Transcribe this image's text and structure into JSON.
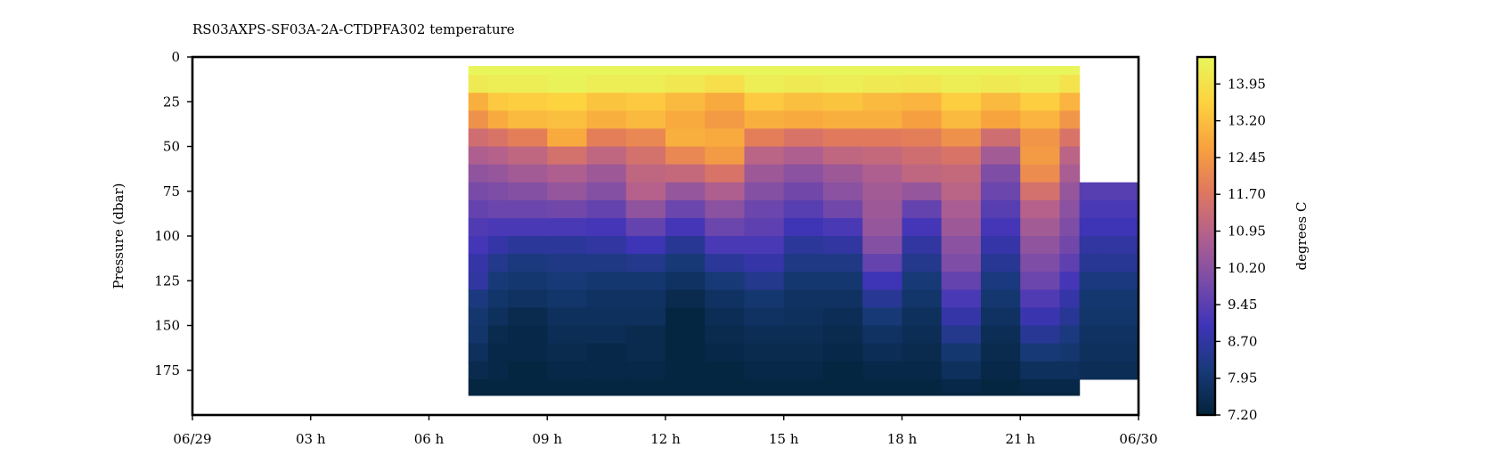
{
  "chart_data": {
    "type": "heatmap",
    "title": "RS03AXPS-SF03A-2A-CTDPFA302 temperature",
    "xlabel": "",
    "ylabel": "Pressure (dbar)",
    "colorbar_label": "degrees C",
    "x_ticks": [
      "06/29",
      "03 h",
      "06 h",
      "09 h",
      "12 h",
      "15 h",
      "18 h",
      "21 h",
      "06/30"
    ],
    "y_ticks": [
      "0",
      "25",
      "50",
      "75",
      "100",
      "125",
      "150",
      "175"
    ],
    "colorbar_ticks": [
      "13.95",
      "13.20",
      "12.45",
      "11.70",
      "10.95",
      "10.20",
      "9.45",
      "8.70",
      "7.95",
      "7.20"
    ],
    "xlim_hours": [
      0,
      24
    ],
    "ylim": [
      200,
      0
    ],
    "color_range": [
      7.2,
      14.5
    ],
    "grid": false,
    "colormap": [
      "#03233a",
      "#173a78",
      "#3f34b8",
      "#7a4ca8",
      "#b2608e",
      "#e0785e",
      "#f8a33e",
      "#fdd340",
      "#e8f65c"
    ],
    "profile_times_hours": [
      7.0,
      7.5,
      8.0,
      9.0,
      10.0,
      11.0,
      12.0,
      13.0,
      14.0,
      15.0,
      16.0,
      17.0,
      18.0,
      19.0,
      20.0,
      21.0,
      22.0,
      22.5,
      23.0,
      24.0
    ],
    "depths_dbar": [
      5,
      15,
      25,
      35,
      45,
      55,
      65,
      75,
      85,
      95,
      105,
      115,
      125,
      135,
      145,
      155,
      165,
      175,
      185,
      190
    ],
    "max_depth_dbar": [
      189,
      189,
      189,
      189,
      189,
      189,
      189,
      189,
      189,
      189,
      189,
      189,
      189,
      189,
      189,
      189,
      189,
      182,
      182,
      189
    ],
    "temperature_celsius": [
      [
        14.5,
        14.5,
        14.5,
        14.5,
        14.5,
        14.5,
        14.5,
        14.5,
        14.5,
        14.5,
        14.5,
        14.5,
        14.5,
        14.5,
        14.5,
        14.5,
        14.5,
        null,
        null,
        null
      ],
      [
        14.2,
        14.3,
        14.3,
        14.4,
        14.3,
        14.3,
        14.1,
        13.9,
        14.3,
        14.2,
        14.3,
        14.2,
        14.1,
        14.3,
        14.2,
        14.3,
        14.0,
        null,
        null,
        null
      ],
      [
        12.9,
        13.4,
        13.5,
        13.6,
        13.3,
        13.4,
        13.1,
        12.8,
        13.4,
        13.2,
        13.3,
        13.1,
        13.0,
        13.5,
        13.1,
        13.5,
        13.0,
        null,
        null,
        null
      ],
      [
        12.3,
        12.8,
        13.1,
        13.2,
        12.9,
        13.1,
        12.8,
        12.5,
        12.9,
        12.8,
        12.9,
        12.9,
        12.6,
        13.1,
        12.7,
        13.0,
        12.4,
        null,
        null,
        null
      ],
      [
        11.4,
        11.6,
        11.9,
        12.8,
        11.9,
        12.1,
        12.9,
        12.8,
        11.9,
        11.6,
        11.8,
        11.8,
        11.9,
        12.3,
        11.4,
        12.4,
        11.6,
        null,
        null,
        null
      ],
      [
        10.8,
        10.9,
        11.1,
        11.5,
        11.1,
        11.5,
        12.1,
        12.5,
        11.0,
        10.8,
        11.1,
        11.2,
        11.4,
        11.6,
        10.6,
        12.5,
        11.0,
        null,
        null,
        null
      ],
      [
        10.3,
        10.4,
        10.6,
        10.8,
        10.5,
        11.1,
        11.2,
        11.6,
        10.5,
        10.2,
        10.5,
        10.8,
        11.1,
        11.2,
        10.0,
        12.2,
        10.7,
        null,
        null,
        null
      ],
      [
        9.9,
        10.0,
        10.1,
        10.4,
        10.1,
        10.9,
        10.4,
        10.8,
        10.1,
        9.8,
        10.2,
        10.6,
        10.4,
        11.0,
        9.7,
        11.5,
        10.4,
        9.4,
        9.4,
        null
      ],
      [
        9.6,
        9.7,
        9.7,
        9.8,
        9.6,
        10.3,
        9.7,
        10.2,
        9.7,
        9.4,
        9.8,
        10.5,
        9.6,
        10.7,
        9.4,
        10.9,
        10.2,
        9.2,
        9.2,
        null
      ],
      [
        9.3,
        9.2,
        9.2,
        9.2,
        9.1,
        9.6,
        9.1,
        9.7,
        9.5,
        9.0,
        9.2,
        10.4,
        9.1,
        10.5,
        9.1,
        10.6,
        10.0,
        9.0,
        9.0,
        null
      ],
      [
        9.1,
        8.8,
        8.6,
        8.6,
        8.7,
        9.0,
        8.5,
        9.2,
        9.2,
        8.6,
        8.7,
        10.1,
        8.7,
        10.2,
        8.8,
        10.3,
        9.8,
        8.7,
        8.7,
        null
      ],
      [
        8.8,
        8.4,
        8.2,
        8.3,
        8.3,
        8.4,
        8.1,
        8.6,
        8.8,
        8.3,
        8.3,
        9.6,
        8.4,
        10.0,
        8.5,
        10.0,
        9.5,
        8.5,
        8.5,
        null
      ],
      [
        8.7,
        8.1,
        8.0,
        8.1,
        8.0,
        8.0,
        7.8,
        8.1,
        8.4,
        8.0,
        8.0,
        9.0,
        8.1,
        9.6,
        8.2,
        9.7,
        9.1,
        8.2,
        8.2,
        null
      ],
      [
        8.2,
        7.9,
        7.8,
        7.9,
        7.8,
        7.8,
        7.5,
        7.8,
        8.0,
        7.8,
        7.8,
        8.5,
        7.9,
        9.2,
        8.0,
        9.3,
        8.8,
        8.0,
        8.0,
        null
      ],
      [
        8.0,
        7.7,
        7.5,
        7.7,
        7.7,
        7.7,
        7.3,
        7.6,
        7.8,
        7.7,
        7.6,
        8.1,
        7.7,
        8.8,
        7.8,
        8.9,
        8.5,
        7.9,
        7.9,
        null
      ],
      [
        7.9,
        7.5,
        7.4,
        7.6,
        7.6,
        7.5,
        7.3,
        7.5,
        7.6,
        7.6,
        7.5,
        7.8,
        7.6,
        8.4,
        7.6,
        8.5,
        8.2,
        7.8,
        7.8,
        null
      ],
      [
        7.7,
        7.4,
        7.4,
        7.5,
        7.4,
        7.5,
        7.3,
        7.4,
        7.5,
        7.5,
        7.4,
        7.6,
        7.5,
        8.0,
        7.5,
        8.1,
        8.0,
        7.7,
        7.7,
        null
      ],
      [
        7.5,
        7.4,
        7.3,
        7.4,
        7.4,
        7.4,
        7.3,
        7.3,
        7.4,
        7.4,
        7.3,
        7.4,
        7.4,
        7.7,
        7.4,
        7.7,
        7.7,
        7.6,
        7.6,
        null
      ],
      [
        7.3,
        7.3,
        7.3,
        7.3,
        7.3,
        7.3,
        7.3,
        7.3,
        7.3,
        7.3,
        7.3,
        7.3,
        7.3,
        7.4,
        7.3,
        7.4,
        7.4,
        null,
        null,
        null
      ],
      [
        7.3,
        7.3,
        7.3,
        7.3,
        7.3,
        7.3,
        7.3,
        7.3,
        7.3,
        7.3,
        7.3,
        7.3,
        7.3,
        7.3,
        7.3,
        7.3,
        7.3,
        null,
        null,
        null
      ]
    ]
  }
}
